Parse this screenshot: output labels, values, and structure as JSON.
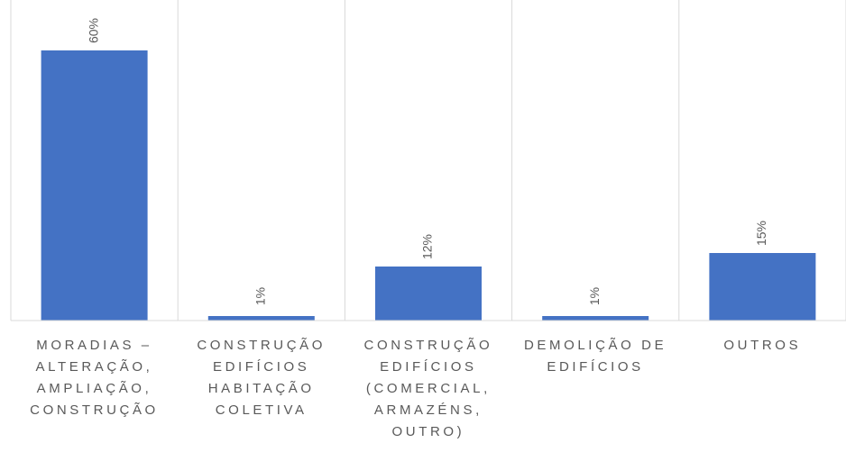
{
  "chart_data": {
    "type": "bar",
    "categories": [
      "MORADIAS – ALTERAÇÃO, AMPLIAÇÃO, CONSTRUÇÃO",
      "CONSTRUÇÃO EDIFÍCIOS HABITAÇÃO COLETIVA",
      "CONSTRUÇÃO EDIFÍCIOS (COMERCIAL, ARMAZÉNS, OUTRO)",
      "DEMOLIÇÃO DE EDIFÍCIOS",
      "OUTROS"
    ],
    "values": [
      60,
      1,
      12,
      1,
      15
    ],
    "value_labels": [
      "60%",
      "1%",
      "12%",
      "1%",
      "15%"
    ],
    "color": "#4472c4"
  }
}
